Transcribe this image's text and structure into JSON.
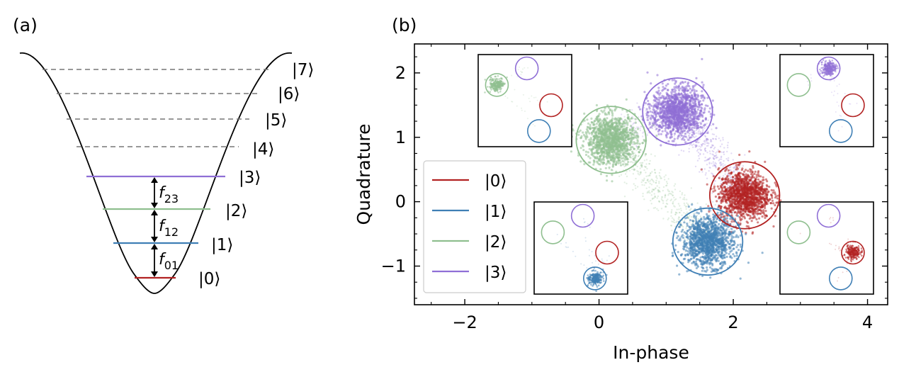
{
  "panel_a": {
    "tag": "(a)",
    "levels": [
      {
        "label": "|0⟩",
        "color": "#b22222"
      },
      {
        "label": "|1⟩",
        "color": "#3f7fb5"
      },
      {
        "label": "|2⟩",
        "color": "#8fbf8f"
      },
      {
        "label": "|3⟩",
        "color": "#8f6fd6"
      },
      {
        "label": "|4⟩",
        "color": "#777777"
      },
      {
        "label": "|5⟩",
        "color": "#777777"
      },
      {
        "label": "|6⟩",
        "color": "#777777"
      },
      {
        "label": "|7⟩",
        "color": "#777777"
      }
    ],
    "transitions": [
      {
        "base": "f",
        "sub": "01"
      },
      {
        "base": "f",
        "sub": "12"
      },
      {
        "base": "f",
        "sub": "23"
      }
    ]
  },
  "panel_b": {
    "tag": "(b)",
    "legend_entries": [
      "|0⟩",
      "|1⟩",
      "|2⟩",
      "|3⟩"
    ]
  },
  "chart_data": {
    "type": "scatter",
    "title": "",
    "xlabel": "In-phase",
    "ylabel": "Quadrature",
    "xlim": [
      -2.75,
      4.3
    ],
    "ylim": [
      -1.6,
      2.45
    ],
    "xticks": [
      -2,
      0,
      2,
      4
    ],
    "yticks": [
      -1,
      0,
      1,
      2
    ],
    "legend_position": "lower-left",
    "series": [
      {
        "name": "|0⟩",
        "color": "#b22222",
        "center": [
          2.17,
          0.1
        ],
        "circle_radius": 0.52
      },
      {
        "name": "|1⟩",
        "color": "#3f7fb5",
        "center": [
          1.62,
          -0.62
        ],
        "circle_radius": 0.52
      },
      {
        "name": "|2⟩",
        "color": "#8fbf8f",
        "center": [
          0.18,
          0.96
        ],
        "circle_radius": 0.52
      },
      {
        "name": "|3⟩",
        "color": "#8f6fd6",
        "center": [
          1.17,
          1.4
        ],
        "circle_radius": 0.52
      }
    ],
    "insets": [
      {
        "location": "upper-left",
        "prepared_state": "|2⟩"
      },
      {
        "location": "upper-right",
        "prepared_state": "|3⟩"
      },
      {
        "location": "lower-left",
        "prepared_state": "|1⟩"
      },
      {
        "location": "lower-right",
        "prepared_state": "|0⟩"
      }
    ]
  }
}
